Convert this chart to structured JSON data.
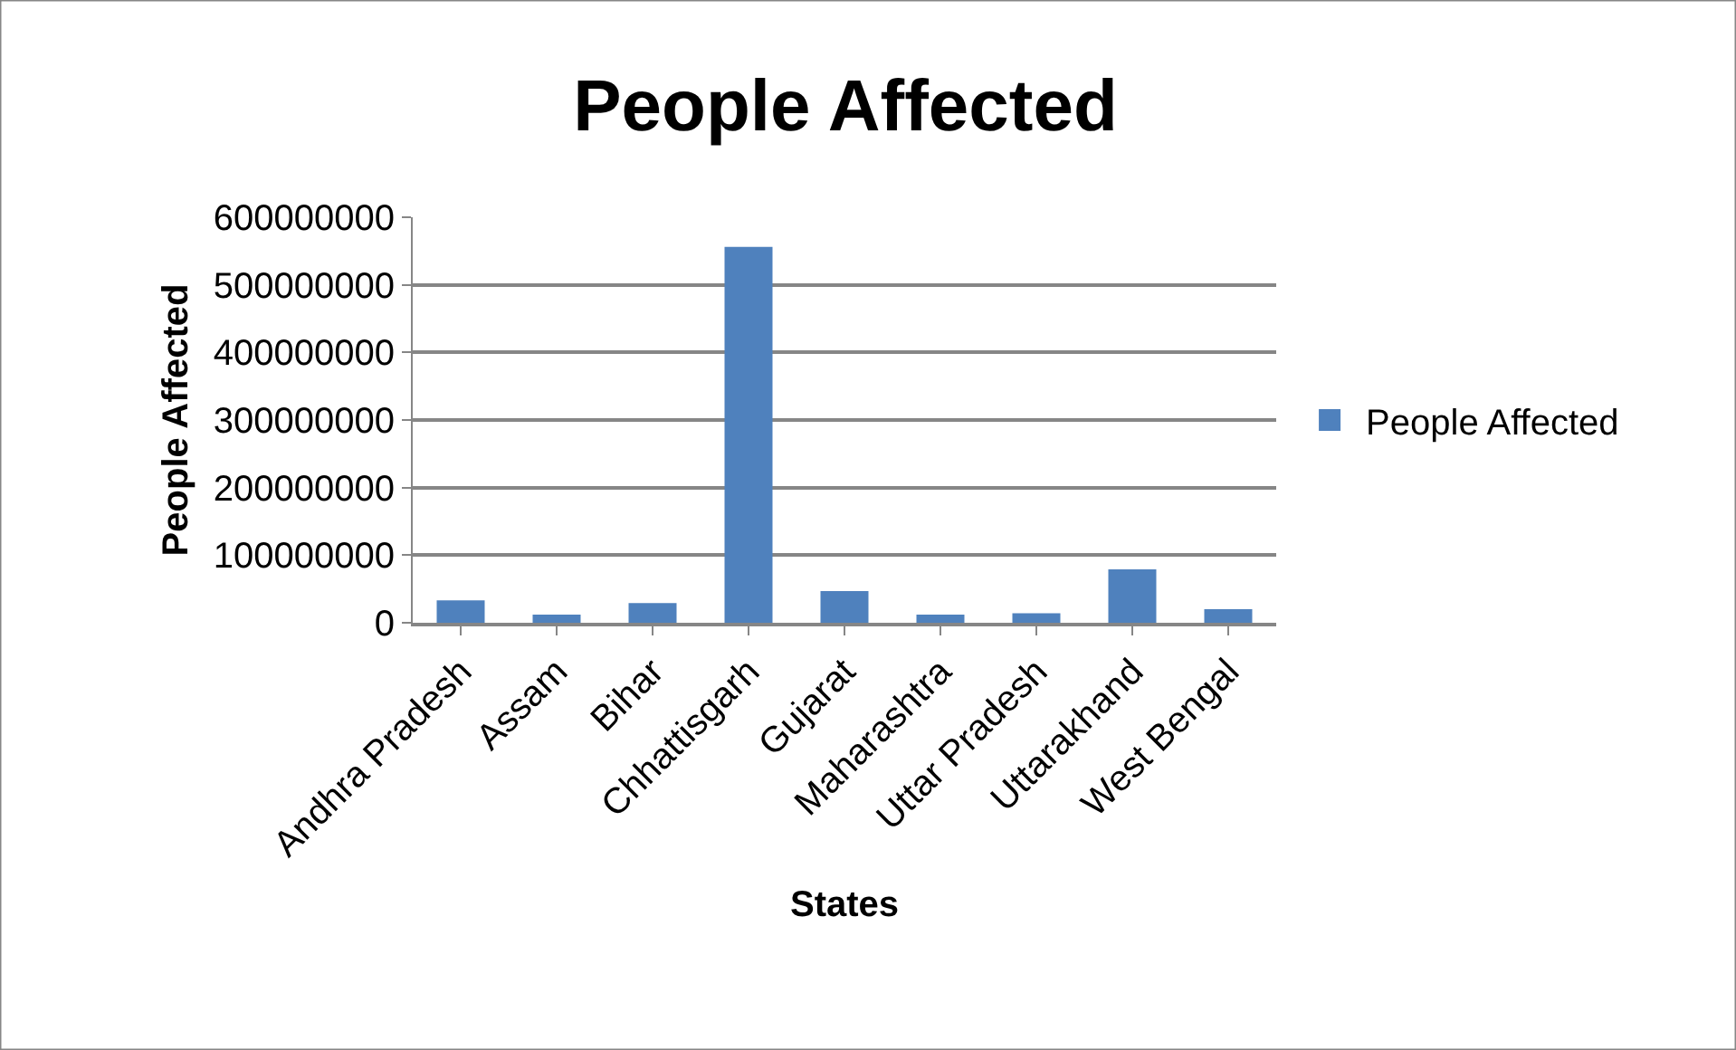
{
  "chart_data": {
    "type": "bar",
    "title": "People Affected",
    "xlabel": "States",
    "ylabel": "People Affected",
    "categories": [
      "Andhra Pradesh",
      "Assam",
      "Bihar",
      "Chhattisgarh",
      "Gujarat",
      "Maharashtra",
      "Uttar Pradesh",
      "Uttarakhand",
      "West Bengal"
    ],
    "series": [
      {
        "name": "People Affected",
        "color": "#4f81bd",
        "values": [
          33000000,
          12000000,
          29000000,
          556000000,
          47000000,
          12000000,
          14000000,
          79000000,
          20000000
        ]
      }
    ],
    "ylim": [
      0,
      600000000
    ],
    "yticks": [
      0,
      100000000,
      200000000,
      300000000,
      400000000,
      500000000,
      600000000
    ],
    "grid": "y",
    "legend": "right"
  }
}
